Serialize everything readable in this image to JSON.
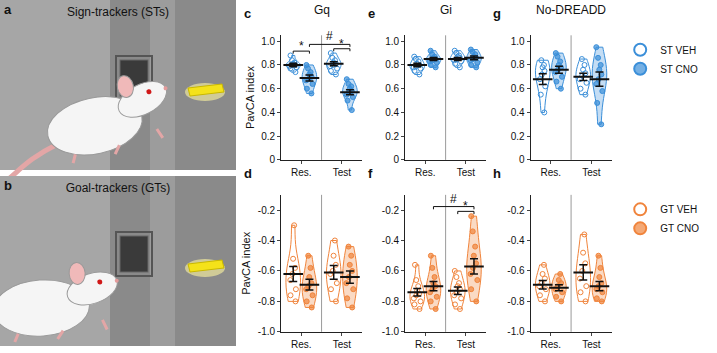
{
  "illustrations": [
    {
      "panel": "a",
      "label": "Sign-trackers (STs)"
    },
    {
      "panel": "b",
      "label": "Goal-trackers (GTs)"
    }
  ],
  "chart_data": [
    {
      "panel": "c",
      "type": "violin",
      "title": "Gq",
      "ylabel": "PavCA index",
      "categories": [
        "Res.",
        "Test"
      ],
      "ylim": [
        0,
        1.05
      ],
      "yticks": [
        0,
        0.2,
        0.4,
        0.6,
        0.8,
        {
          "value": 1,
          "label": "1.0"
        }
      ],
      "series": [
        {
          "name": "ST VEH",
          "color": "#3b8fd9",
          "marker": "circle-open",
          "values": [
            [
              0.74,
              0.77,
              0.78,
              0.79,
              0.8,
              0.8,
              0.81,
              0.82,
              0.84,
              0.88
            ],
            [
              0.72,
              0.75,
              0.77,
              0.79,
              0.8,
              0.81,
              0.82,
              0.84,
              0.86,
              0.9
            ]
          ],
          "mean": [
            0.8,
            0.81
          ],
          "sem": [
            0.015,
            0.017
          ]
        },
        {
          "name": "ST CNO",
          "color": "#3b8fd9",
          "marker": "circle",
          "values": [
            [
              0.56,
              0.6,
              0.64,
              0.67,
              0.68,
              0.7,
              0.72,
              0.74,
              0.77,
              0.8
            ],
            [
              0.42,
              0.5,
              0.53,
              0.55,
              0.57,
              0.58,
              0.6,
              0.62,
              0.64,
              0.68
            ]
          ],
          "mean": [
            0.69,
            0.57
          ],
          "sem": [
            0.025,
            0.022
          ]
        }
      ],
      "annotations": [
        {
          "text": "*",
          "between": [
            [
              "Res.",
              "ST VEH"
            ],
            [
              "Res.",
              "ST CNO"
            ]
          ]
        },
        {
          "text": "*",
          "between": [
            [
              "Test",
              "ST VEH"
            ],
            [
              "Test",
              "ST CNO"
            ]
          ]
        },
        {
          "text": "#",
          "between": [
            [
              "Res.",
              "ST CNO"
            ],
            [
              "Test",
              "ST CNO"
            ]
          ]
        }
      ]
    },
    {
      "panel": "d",
      "type": "violin",
      "ylabel": "PavCA index",
      "categories": [
        "Res.",
        "Test"
      ],
      "ylim": [
        -1,
        -0.1
      ],
      "yticks": [
        {
          "value": -1,
          "label": "-1.0"
        },
        -0.8,
        -0.6,
        -0.4,
        -0.2
      ],
      "series": [
        {
          "name": "GT VEH",
          "color": "#f0843c",
          "marker": "circle-open",
          "values": [
            [
              -0.8,
              -0.76,
              -0.72,
              -0.66,
              -0.62,
              -0.58,
              -0.52,
              -0.3
            ],
            [
              -0.8,
              -0.72,
              -0.68,
              -0.62,
              -0.6,
              -0.56,
              -0.5,
              -0.4
            ]
          ],
          "mean": [
            -0.62,
            -0.61
          ],
          "sem": [
            0.05,
            0.045
          ]
        },
        {
          "name": "GT CNO",
          "color": "#f0843c",
          "marker": "circle",
          "values": [
            [
              -0.84,
              -0.8,
              -0.76,
              -0.72,
              -0.7,
              -0.68,
              -0.64,
              -0.58,
              -0.5
            ],
            [
              -0.84,
              -0.78,
              -0.72,
              -0.68,
              -0.64,
              -0.6,
              -0.56,
              -0.5,
              -0.44
            ]
          ],
          "mean": [
            -0.69,
            -0.64
          ],
          "sem": [
            0.035,
            0.04
          ]
        }
      ],
      "annotations": []
    },
    {
      "panel": "e",
      "type": "violin",
      "title": "Gi",
      "categories": [
        "Res.",
        "Test"
      ],
      "ylim": [
        0,
        1.05
      ],
      "yticks": [
        0,
        0.2,
        0.4,
        0.6,
        0.8,
        {
          "value": 1,
          "label": "1.0"
        }
      ],
      "series": [
        {
          "name": "ST VEH",
          "color": "#3b8fd9",
          "marker": "circle-open",
          "values": [
            [
              0.72,
              0.75,
              0.77,
              0.78,
              0.79,
              0.8,
              0.81,
              0.83,
              0.85,
              0.87
            ],
            [
              0.78,
              0.81,
              0.83,
              0.84,
              0.85,
              0.86,
              0.87,
              0.88,
              0.9,
              0.92
            ]
          ],
          "mean": [
            0.8,
            0.85
          ],
          "sem": [
            0.015,
            0.013
          ]
        },
        {
          "name": "ST CNO",
          "color": "#3b8fd9",
          "marker": "circle",
          "values": [
            [
              0.78,
              0.8,
              0.82,
              0.83,
              0.84,
              0.85,
              0.86,
              0.87,
              0.89,
              0.92
            ],
            [
              0.78,
              0.8,
              0.82,
              0.84,
              0.85,
              0.86,
              0.87,
              0.89,
              0.91,
              0.93
            ]
          ],
          "mean": [
            0.85,
            0.86
          ],
          "sem": [
            0.013,
            0.015
          ]
        }
      ],
      "annotations": []
    },
    {
      "panel": "f",
      "type": "violin",
      "categories": [
        "Res.",
        "Test"
      ],
      "ylim": [
        -1,
        -0.1
      ],
      "yticks": [
        {
          "value": -1,
          "label": "-1.0"
        },
        -0.8,
        -0.6,
        -0.4,
        -0.2
      ],
      "series": [
        {
          "name": "GT VEH",
          "color": "#f0843c",
          "marker": "circle-open",
          "values": [
            [
              -0.85,
              -0.82,
              -0.8,
              -0.78,
              -0.76,
              -0.75,
              -0.73,
              -0.7,
              -0.66,
              -0.56
            ],
            [
              -0.85,
              -0.82,
              -0.78,
              -0.76,
              -0.74,
              -0.72,
              -0.7,
              -0.68,
              -0.64,
              -0.6
            ]
          ],
          "mean": [
            -0.74,
            -0.73
          ],
          "sem": [
            0.025,
            0.024
          ]
        },
        {
          "name": "GT CNO",
          "color": "#f0843c",
          "marker": "circle",
          "values": [
            [
              -0.85,
              -0.8,
              -0.77,
              -0.74,
              -0.72,
              -0.7,
              -0.68,
              -0.64,
              -0.58,
              -0.5
            ],
            [
              -0.8,
              -0.72,
              -0.66,
              -0.62,
              -0.58,
              -0.55,
              -0.5,
              -0.44,
              -0.34,
              -0.24
            ]
          ],
          "mean": [
            -0.7,
            -0.57
          ],
          "sem": [
            0.03,
            0.05
          ]
        }
      ],
      "annotations": [
        {
          "text": "*",
          "between": [
            [
              "Test",
              "GT VEH"
            ],
            [
              "Test",
              "GT CNO"
            ]
          ]
        },
        {
          "text": "#",
          "between": [
            [
              "Res.",
              "GT CNO"
            ],
            [
              "Test",
              "GT CNO"
            ]
          ]
        }
      ]
    },
    {
      "panel": "g",
      "type": "violin",
      "title": "No-DREADD",
      "categories": [
        "Res.",
        "Test"
      ],
      "legend": "right",
      "ylim": [
        0,
        1.05
      ],
      "yticks": [
        0,
        0.2,
        0.4,
        0.6,
        0.8,
        {
          "value": 1,
          "label": "1.0"
        }
      ],
      "series": [
        {
          "name": "ST VEH",
          "color": "#3b8fd9",
          "marker": "circle-open",
          "values": [
            [
              0.4,
              0.55,
              0.62,
              0.68,
              0.72,
              0.75,
              0.78,
              0.8,
              0.84
            ],
            [
              0.55,
              0.6,
              0.65,
              0.68,
              0.71,
              0.73,
              0.76,
              0.8,
              0.85
            ]
          ],
          "mean": [
            0.68,
            0.7
          ],
          "sem": [
            0.045,
            0.03
          ]
        },
        {
          "name": "ST CNO",
          "color": "#3b8fd9",
          "marker": "circle",
          "values": [
            [
              0.6,
              0.66,
              0.7,
              0.74,
              0.76,
              0.78,
              0.8,
              0.83,
              0.87,
              0.9
            ],
            [
              0.3,
              0.48,
              0.58,
              0.64,
              0.68,
              0.72,
              0.76,
              0.8,
              0.86,
              0.95
            ]
          ],
          "mean": [
            0.76,
            0.68
          ],
          "sem": [
            0.03,
            0.06
          ]
        }
      ],
      "annotations": []
    },
    {
      "panel": "h",
      "type": "violin",
      "categories": [
        "Res.",
        "Test"
      ],
      "legend": "right",
      "ylim": [
        -1,
        -0.1
      ],
      "yticks": [
        {
          "value": -1,
          "label": "-1.0"
        },
        -0.8,
        -0.6,
        -0.4,
        -0.2
      ],
      "series": [
        {
          "name": "GT VEH",
          "color": "#f0843c",
          "marker": "circle-open",
          "values": [
            [
              -0.8,
              -0.76,
              -0.72,
              -0.7,
              -0.68,
              -0.65,
              -0.62,
              -0.56
            ],
            [
              -0.8,
              -0.74,
              -0.7,
              -0.65,
              -0.6,
              -0.55,
              -0.48,
              -0.36
            ]
          ],
          "mean": [
            -0.69,
            -0.61
          ],
          "sem": [
            0.028,
            0.05
          ]
        },
        {
          "name": "GT CNO",
          "color": "#f0843c",
          "marker": "circle",
          "values": [
            [
              -0.8,
              -0.77,
              -0.74,
              -0.72,
              -0.7,
              -0.68,
              -0.66,
              -0.62
            ],
            [
              -0.8,
              -0.78,
              -0.74,
              -0.72,
              -0.7,
              -0.68,
              -0.64,
              -0.58,
              -0.5
            ]
          ],
          "mean": [
            -0.71,
            -0.7
          ],
          "sem": [
            0.02,
            0.03
          ]
        }
      ],
      "annotations": []
    }
  ]
}
